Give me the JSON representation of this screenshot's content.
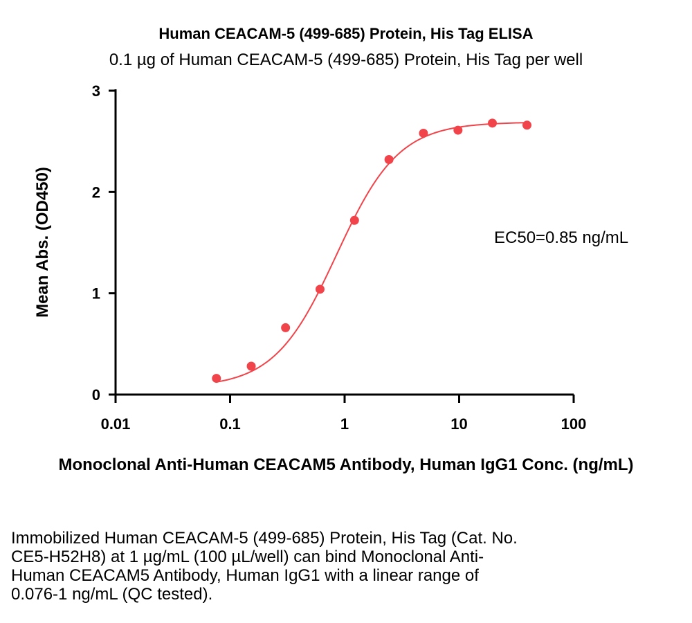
{
  "chart_data": {
    "type": "scatter",
    "title": "Human CEACAM-5 (499-685) Protein, His Tag ELISA",
    "subtitle": "0.1 µg of Human CEACAM-5 (499-685) Protein, His Tag per well",
    "xlabel": "Monoclonal Anti-Human CEACAM5 Antibody, Human IgG1 Conc. (ng/mL)",
    "ylabel": "Mean Abs. (OD450)",
    "xscale": "log",
    "xlim": [
      0.01,
      100
    ],
    "ylim": [
      0,
      3
    ],
    "x_ticks": [
      0.01,
      0.1,
      1,
      10,
      100
    ],
    "x_tick_labels": [
      "0.01",
      "0.1",
      "1",
      "10",
      "100"
    ],
    "y_ticks": [
      0,
      1,
      2,
      3
    ],
    "y_tick_labels": [
      "0",
      "1",
      "2",
      "3"
    ],
    "grid": false,
    "series": [
      {
        "color": "#f0444a",
        "x": [
          0.076,
          0.153,
          0.305,
          0.61,
          1.22,
          2.44,
          4.88,
          9.77,
          19.5,
          39.1
        ],
        "y": [
          0.16,
          0.28,
          0.66,
          1.04,
          1.72,
          2.32,
          2.58,
          2.61,
          2.68,
          2.66
        ]
      }
    ],
    "annotation": "EC50=0.85 ng/mL"
  },
  "caption": {
    "lines": [
      "Immobilized Human CEACAM-5 (499-685) Protein, His Tag (Cat. No.",
      "CE5-H52H8) at 1 µg/mL (100 µL/well) can bind Monoclonal Anti-",
      "Human CEACAM5 Antibody, Human IgG1 with a linear range of",
      "0.076-1 ng/mL (QC tested)."
    ]
  }
}
